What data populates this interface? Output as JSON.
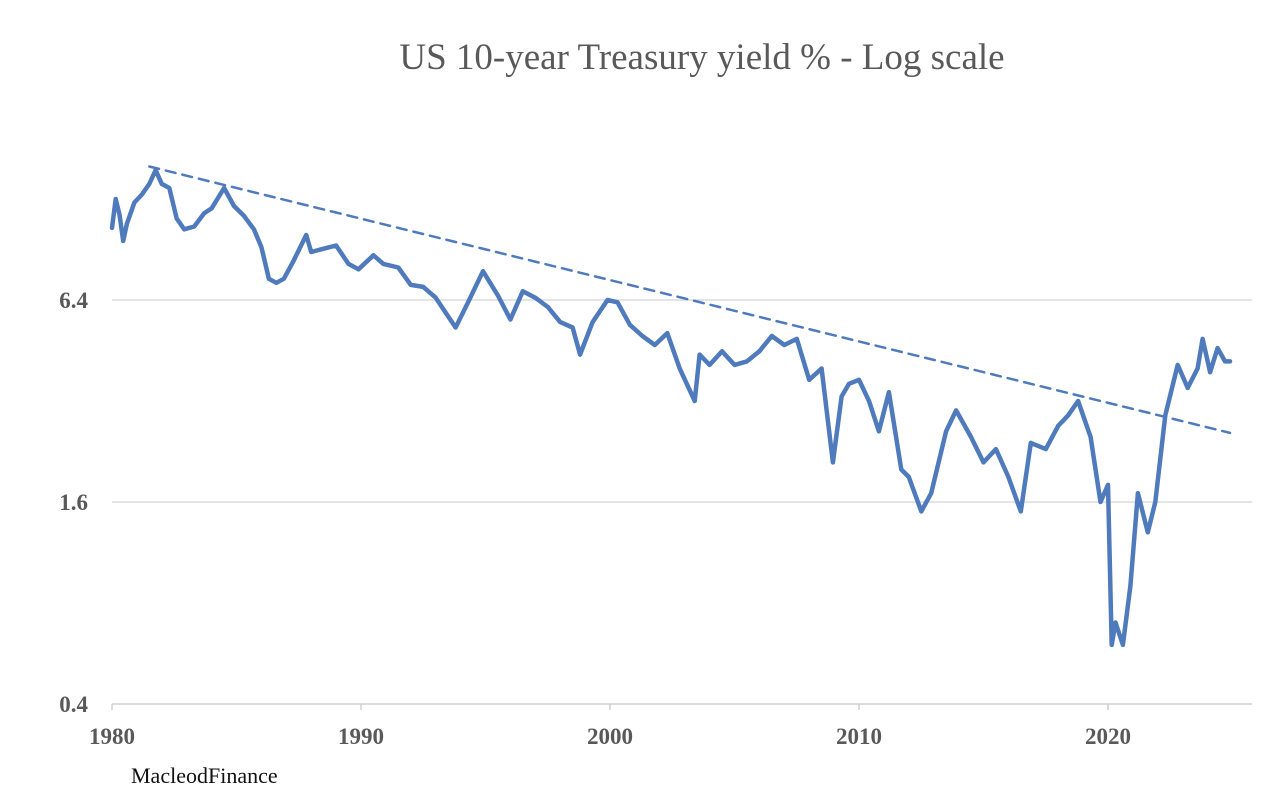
{
  "chart_data": {
    "type": "line",
    "title": "US 10-year Treasury yield % - Log scale",
    "xlabel": "",
    "ylabel": "",
    "y_scale": "log",
    "ylim": [
      0.4,
      25.6
    ],
    "xlim": [
      1980,
      2025.6
    ],
    "grid": true,
    "y_ticks": [
      "0.4",
      "1.6",
      "6.4"
    ],
    "y_tick_values": [
      0.4,
      1.6,
      6.4
    ],
    "x_ticks": [
      "1980",
      "1990",
      "2000",
      "2010",
      "2020"
    ],
    "x_tick_values": [
      1980,
      1990,
      2000,
      2010,
      2020
    ],
    "series": [
      {
        "name": "US 10-year Treasury yield",
        "color": "#4f7bbd",
        "x": [
          1980.0,
          1980.15,
          1980.3,
          1980.45,
          1980.6,
          1980.9,
          1981.2,
          1981.5,
          1981.75,
          1982.0,
          1982.3,
          1982.6,
          1982.9,
          1983.3,
          1983.7,
          1984.0,
          1984.5,
          1984.9,
          1985.3,
          1985.7,
          1986.0,
          1986.3,
          1986.6,
          1986.9,
          1987.3,
          1987.8,
          1988.0,
          1988.5,
          1989.0,
          1989.5,
          1989.9,
          1990.5,
          1990.9,
          1991.5,
          1992.0,
          1992.5,
          1993.0,
          1993.8,
          1994.3,
          1994.9,
          1995.5,
          1996.0,
          1996.5,
          1997.0,
          1997.5,
          1998.0,
          1998.5,
          1998.8,
          1999.3,
          1999.9,
          2000.3,
          2000.8,
          2001.3,
          2001.8,
          2002.3,
          2002.8,
          2003.4,
          2003.6,
          2004.0,
          2004.5,
          2005.0,
          2005.5,
          2006.0,
          2006.5,
          2007.0,
          2007.5,
          2008.0,
          2008.5,
          2008.95,
          2009.3,
          2009.6,
          2010.0,
          2010.4,
          2010.8,
          2011.2,
          2011.7,
          2012.0,
          2012.5,
          2012.9,
          2013.5,
          2013.9,
          2014.5,
          2015.0,
          2015.5,
          2016.0,
          2016.5,
          2016.9,
          2017.5,
          2018.0,
          2018.4,
          2018.8,
          2019.3,
          2019.7,
          2020.0,
          2020.15,
          2020.3,
          2020.6,
          2020.9,
          2021.2,
          2021.6,
          2021.9,
          2022.3,
          2022.8,
          2023.2,
          2023.6,
          2023.8,
          2024.1,
          2024.4,
          2024.7,
          2024.9
        ],
        "values": [
          10.5,
          12.8,
          11.5,
          9.6,
          10.8,
          12.5,
          13.2,
          14.2,
          15.6,
          14.2,
          13.8,
          11.2,
          10.4,
          10.6,
          11.6,
          12.0,
          13.8,
          12.2,
          11.4,
          10.4,
          9.2,
          7.4,
          7.2,
          7.4,
          8.4,
          10.0,
          8.9,
          9.1,
          9.3,
          8.2,
          7.9,
          8.7,
          8.2,
          8.0,
          7.1,
          7.0,
          6.5,
          5.3,
          6.3,
          7.8,
          6.6,
          5.6,
          6.8,
          6.5,
          6.1,
          5.5,
          5.3,
          4.4,
          5.5,
          6.4,
          6.3,
          5.4,
          5.0,
          4.7,
          5.1,
          4.0,
          3.2,
          4.4,
          4.1,
          4.5,
          4.1,
          4.2,
          4.5,
          5.0,
          4.7,
          4.9,
          3.7,
          4.0,
          2.1,
          3.3,
          3.6,
          3.7,
          3.2,
          2.6,
          3.4,
          2.0,
          1.9,
          1.5,
          1.7,
          2.6,
          3.0,
          2.5,
          2.1,
          2.3,
          1.9,
          1.5,
          2.4,
          2.3,
          2.7,
          2.9,
          3.2,
          2.5,
          1.6,
          1.8,
          0.6,
          0.7,
          0.6,
          0.9,
          1.7,
          1.3,
          1.6,
          2.9,
          4.1,
          3.5,
          4.0,
          4.9,
          3.9,
          4.6,
          4.2,
          4.2
        ]
      },
      {
        "name": "Trendline",
        "color": "#4f7bbd",
        "style": "dashed",
        "x": [
          1981.5,
          2024.9
        ],
        "values": [
          16.0,
          2.57
        ]
      }
    ],
    "annotations": [
      "MacleodFinance"
    ]
  }
}
